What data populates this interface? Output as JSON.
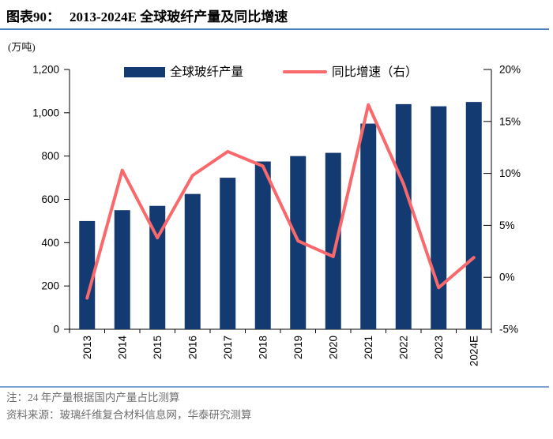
{
  "header": {
    "figure_label": "图表90：",
    "title": "2013-2024E 全球玻纤产量及同比增速"
  },
  "chart_data": {
    "type": "bar+line",
    "title": "2013-2024E 全球玻纤产量及同比增速",
    "categories": [
      "2013",
      "2014",
      "2015",
      "2016",
      "2017",
      "2018",
      "2019",
      "2020",
      "2021",
      "2022",
      "2023",
      "2024E"
    ],
    "series": [
      {
        "name": "全球玻纤产量",
        "type": "bar",
        "axis": "left",
        "unit": "万吨",
        "color": "#143a72",
        "values": [
          500,
          550,
          570,
          625,
          700,
          775,
          800,
          815,
          950,
          1040,
          1030,
          1050
        ]
      },
      {
        "name": "同比增速（右）",
        "type": "line",
        "axis": "right",
        "unit": "%",
        "color": "#f9696c",
        "values": [
          -2.0,
          10.3,
          3.8,
          9.8,
          12.1,
          10.7,
          3.5,
          2.0,
          16.6,
          9.0,
          -1.0,
          1.9
        ]
      }
    ],
    "left_axis": {
      "label": "(万吨)",
      "min": 0,
      "max": 1200,
      "ticks": [
        "1,200",
        "1,000",
        "800",
        "600",
        "400",
        "200",
        "0"
      ]
    },
    "right_axis": {
      "min": -5,
      "max": 20,
      "ticks": [
        "20%",
        "15%",
        "10%",
        "5%",
        "0%",
        "-5%"
      ]
    },
    "legend_position": "top-inside",
    "grid": false
  },
  "footer": {
    "note": "注：24 年产量根据国内产量占比测算",
    "source": "资料来源：玻璃纤维复合材料信息网，华泰研究测算"
  },
  "colors": {
    "bar": "#143a72",
    "line": "#f9696c",
    "title_rule": "#4d7ebf",
    "footer_rule": "#7ca3d4",
    "axis": "#000000",
    "footer_text": "#6f6f6f"
  }
}
